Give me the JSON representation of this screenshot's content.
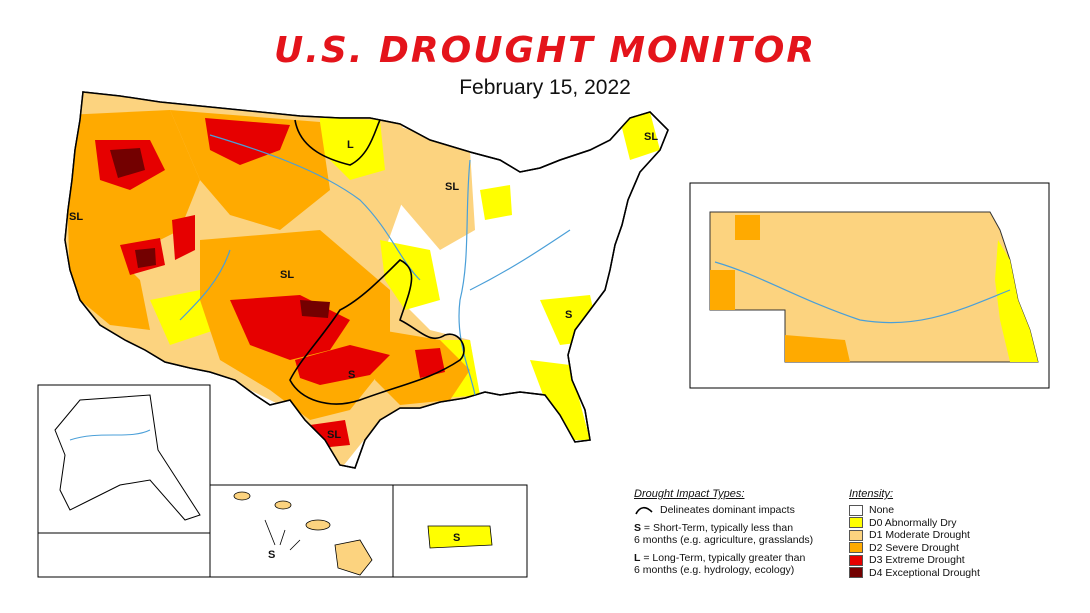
{
  "header": {
    "title": "U.S. DROUGHT MONITOR",
    "date": "February 15, 2022"
  },
  "map_labels": {
    "sl_1": "SL",
    "sl_2": "SL",
    "sl_3": "SL",
    "sl_4": "SL",
    "sl_5": "SL",
    "l_1": "L",
    "s_1": "S",
    "s_2": "S",
    "s_3": "S",
    "s_4": "S"
  },
  "impact_legend": {
    "header": "Drought Impact Types:",
    "line_desc": "Delineates dominant impacts",
    "s_key": "S",
    "s_desc_1": " = Short-Term, typically less than",
    "s_desc_2": "6 months (e.g. agriculture, grasslands)",
    "l_key": "L",
    "l_desc_1": " = Long-Term, typically greater than",
    "l_desc_2": "6 months (e.g. hydrology, ecology)"
  },
  "intensity_legend": {
    "header": "Intensity:",
    "items": [
      {
        "label": "None",
        "color": "#ffffff"
      },
      {
        "label": "D0 Abnormally Dry",
        "color": "#ffff00"
      },
      {
        "label": "D1 Moderate Drought",
        "color": "#fcd37f"
      },
      {
        "label": "D2 Severe Drought",
        "color": "#ffaa00"
      },
      {
        "label": "D3 Extreme Drought",
        "color": "#e60000"
      },
      {
        "label": "D4 Exceptional Drought",
        "color": "#730000"
      }
    ]
  }
}
